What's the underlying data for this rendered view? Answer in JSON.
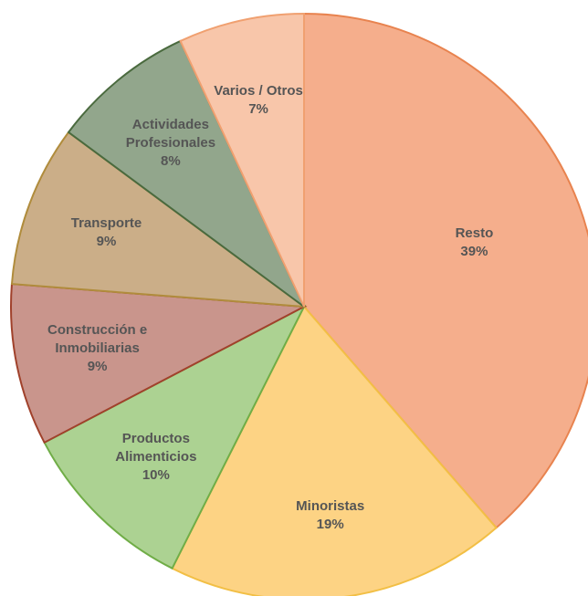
{
  "chart_data": {
    "type": "pie",
    "categories": [
      "Resto",
      "Minoristas",
      "Productos Alimenticios",
      "Construcción e Inmobiliarias",
      "Transporte",
      "Actividades Profesionales",
      "Varios / Otros"
    ],
    "values": [
      39,
      19,
      10,
      9,
      9,
      8,
      7
    ],
    "value_labels": [
      "39%",
      "19%",
      "10%",
      "9%",
      "9%",
      "8%",
      "7%"
    ],
    "colors": [
      "#f5ae8c",
      "#fdd384",
      "#acd292",
      "#c9958c",
      "#cbae88",
      "#92a68c",
      "#f8c6aa"
    ]
  }
}
